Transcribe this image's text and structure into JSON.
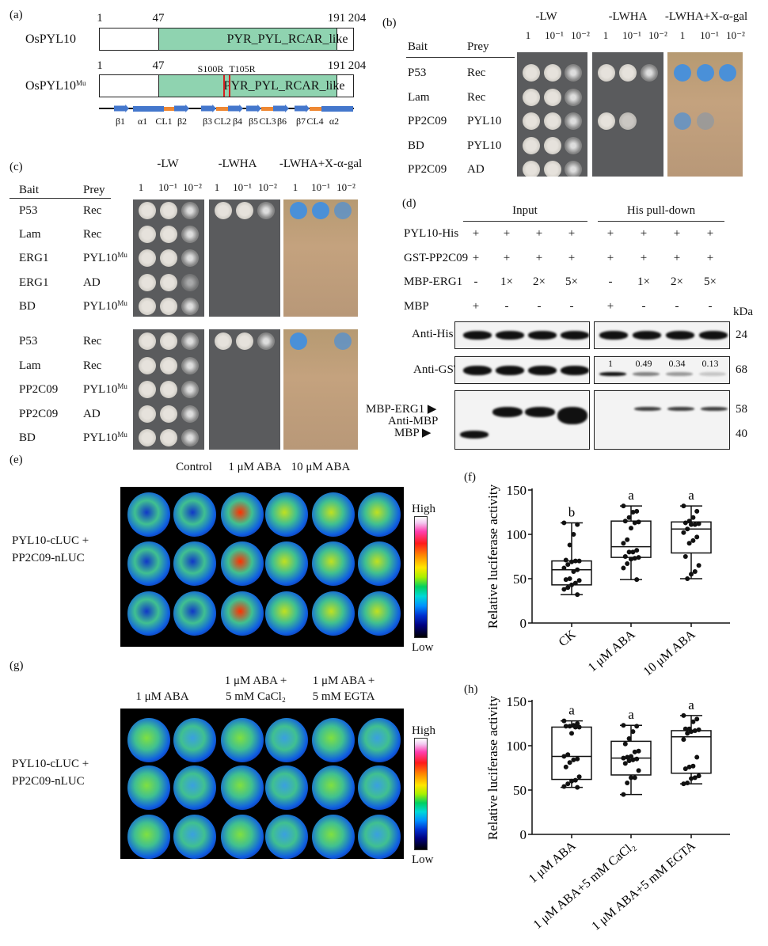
{
  "panel_labels": {
    "a": "(a)",
    "b": "(b)",
    "c": "(c)",
    "d": "(d)",
    "e": "(e)",
    "f": "(f)",
    "g": "(g)",
    "h": "(h)"
  },
  "panel_a": {
    "wt_name": "OsPYL10",
    "mu_name": "OsPYL10",
    "mu_sup": "Mu",
    "domain": "PYR_PYL_RCAR_like",
    "positions": [
      "1",
      "47",
      "191",
      "204"
    ],
    "mutations": [
      "S100R",
      "T105R"
    ],
    "ss_labels": [
      "β1",
      "α1",
      "CL1",
      "β2",
      "β3",
      "CL2",
      "β4",
      "β5",
      "CL3",
      "β6",
      "β7",
      "CL4",
      "α2"
    ],
    "colors": {
      "domain": "#8fd3b0",
      "mutation": "#d42020",
      "strand": "#4477cc",
      "loop": "#ee8833"
    }
  },
  "panel_b": {
    "media": [
      "-LW",
      "-LWHA",
      "-LWHA+X-α-gal"
    ],
    "dilutions": [
      "1",
      "10⁻¹",
      "10⁻²"
    ],
    "headers": {
      "bait": "Bait",
      "prey": "Prey"
    },
    "rows": [
      {
        "bait": "P53",
        "prey": "Rec"
      },
      {
        "bait": "Lam",
        "prey": "Rec"
      },
      {
        "bait": "PP2C09",
        "prey": "PYL10"
      },
      {
        "bait": "BD",
        "prey": "PYL10"
      },
      {
        "bait": "PP2C09",
        "prey": "AD"
      }
    ]
  },
  "panel_c": {
    "media": [
      "-LW",
      "-LWHA",
      "-LWHA+X-α-gal"
    ],
    "dilutions": [
      "1",
      "10⁻¹",
      "10⁻²"
    ],
    "headers": {
      "bait": "Bait",
      "prey": "Prey"
    },
    "rows": [
      {
        "bait": "P53",
        "prey": "Rec",
        "sup": ""
      },
      {
        "bait": "Lam",
        "prey": "Rec",
        "sup": ""
      },
      {
        "bait": "ERG1",
        "prey": "PYL10",
        "sup": "Mu"
      },
      {
        "bait": "ERG1",
        "prey": "AD",
        "sup": ""
      },
      {
        "bait": "BD",
        "prey": "PYL10",
        "sup": "Mu"
      },
      {
        "bait": "P53",
        "prey": "Rec",
        "sup": ""
      },
      {
        "bait": "Lam",
        "prey": "Rec",
        "sup": ""
      },
      {
        "bait": "PP2C09",
        "prey": "PYL10",
        "sup": "Mu"
      },
      {
        "bait": "PP2C09",
        "prey": "AD",
        "sup": ""
      },
      {
        "bait": "BD",
        "prey": "PYL10",
        "sup": "Mu"
      }
    ]
  },
  "panel_d": {
    "groups": [
      "Input",
      "His pull-down"
    ],
    "rows": [
      {
        "label": "PYL10-His",
        "lanes": [
          "+",
          "+",
          "+",
          "+",
          "+",
          "+",
          "+",
          "+"
        ]
      },
      {
        "label": "GST-PP2C09",
        "lanes": [
          "+",
          "+",
          "+",
          "+",
          "+",
          "+",
          "+",
          "+"
        ]
      },
      {
        "label": "MBP-ERG1",
        "lanes": [
          "-",
          "1×",
          "2×",
          "5×",
          "-",
          "1×",
          "2×",
          "5×"
        ]
      },
      {
        "label": "MBP",
        "lanes": [
          "+",
          "-",
          "-",
          "-",
          "+",
          "-",
          "-",
          "-"
        ]
      }
    ],
    "kda_label": "kDa",
    "blots": {
      "his": "Anti-His",
      "gst": "Anti-GST",
      "mbp": "Anti-MBP",
      "mbp_erg1": "MBP-ERG1 ▶",
      "mbp_band": "MBP ▶"
    },
    "kda": [
      "24",
      "68",
      "58",
      "40"
    ],
    "quant": [
      "1",
      "0.49",
      "0.34",
      "0.13"
    ]
  },
  "panel_e": {
    "conditions": [
      "Control",
      "1 μM ABA",
      "10 μM ABA"
    ],
    "construct": [
      "PYL10-cLUC +",
      "PP2C09-nLUC"
    ],
    "scale": {
      "high": "High",
      "low": "Low"
    }
  },
  "panel_g": {
    "conditions": [
      [
        "1 μM ABA",
        ""
      ],
      [
        "1 μM ABA +",
        "5 mM CaCl₂"
      ],
      [
        "1 μM ABA +",
        "5 mM EGTA"
      ]
    ],
    "construct": [
      "PYL10-cLUC +",
      "PP2C09-nLUC"
    ],
    "scale": {
      "high": "High",
      "low": "Low"
    }
  },
  "chart_data": [
    {
      "panel": "f",
      "type": "box",
      "ylabel": "Relative luciferase activity",
      "ylim": [
        0,
        150
      ],
      "yticks": [
        0,
        50,
        100,
        150
      ],
      "categories": [
        "CK",
        "1 μM ABA",
        "10 μM ABA"
      ],
      "letters": [
        "b",
        "a",
        "a"
      ],
      "boxes": [
        {
          "min": 32,
          "q1": 43,
          "median": 60,
          "q3": 70,
          "max": 113,
          "points": [
            113,
            111,
            100,
            88,
            71,
            70,
            70,
            69,
            66,
            62,
            60,
            58,
            50,
            49,
            48,
            45,
            43,
            40,
            38,
            32
          ]
        },
        {
          "min": 49,
          "q1": 74,
          "median": 86,
          "q3": 115,
          "max": 132,
          "points": [
            132,
            126,
            125,
            119,
            115,
            114,
            113,
            107,
            94,
            90,
            82,
            80,
            80,
            75,
            74,
            73,
            72,
            67,
            62,
            49
          ]
        },
        {
          "min": 50,
          "q1": 79,
          "median": 106,
          "q3": 114,
          "max": 132,
          "points": [
            132,
            126,
            119,
            115,
            113,
            112,
            111,
            111,
            106,
            102,
            97,
            93,
            90,
            75,
            65,
            58,
            55,
            50
          ]
        }
      ]
    },
    {
      "panel": "h",
      "type": "box",
      "ylabel": "Relative luciferase activity",
      "ylim": [
        0,
        150
      ],
      "yticks": [
        0,
        50,
        100,
        150
      ],
      "categories": [
        "1 μM ABA",
        "1 μM ABA+5 mM CaCl₂",
        "1 μM ABA+5 mM EGTA"
      ],
      "letters": [
        "a",
        "a",
        "a"
      ],
      "boxes": [
        {
          "min": 53,
          "q1": 62,
          "median": 88,
          "q3": 121,
          "max": 128,
          "points": [
            128,
            125,
            123,
            122,
            122,
            121,
            121,
            114,
            90,
            88,
            85,
            84,
            81,
            76,
            65,
            61,
            60,
            57,
            54,
            53
          ]
        },
        {
          "min": 45,
          "q1": 67,
          "median": 86,
          "q3": 105,
          "max": 123,
          "points": [
            123,
            122,
            116,
            108,
            102,
            94,
            93,
            88,
            87,
            86,
            85,
            84,
            83,
            80,
            72,
            64,
            64,
            58,
            45
          ]
        },
        {
          "min": 57,
          "q1": 69,
          "median": 110,
          "q3": 117,
          "max": 134,
          "points": [
            134,
            130,
            127,
            119,
            119,
            118,
            117,
            116,
            114,
            107,
            87,
            77,
            76,
            74,
            66,
            64,
            63,
            58,
            57
          ]
        }
      ]
    }
  ]
}
